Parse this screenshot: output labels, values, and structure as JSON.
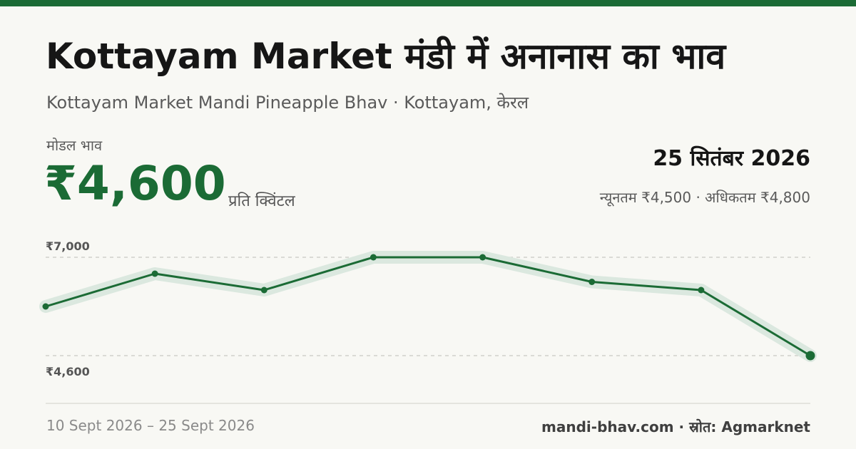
{
  "header": {
    "title": "Kottayam Market मंडी में अनानास का भाव",
    "subtitle": "Kottayam Market Mandi Pineapple Bhav · Kottayam, केरल"
  },
  "price": {
    "label": "मोडल भाव",
    "value": "₹4,600",
    "unit": "प्रति क्विंटल"
  },
  "date": {
    "current": "25 सितंबर 2026",
    "range": "न्यूनतम ₹4,500 · अधिकतम ₹4,800"
  },
  "footer": {
    "period": "10 Sept 2026 – 25 Sept 2026",
    "source": "mandi-bhav.com · स्रोत: Agmarknet"
  },
  "colors": {
    "accent": "#1b6b35",
    "band": "#dbe8df",
    "grid": "#c8c8c2"
  },
  "chart_data": {
    "type": "line",
    "x": [
      "10 Sept 2026",
      "",
      "",
      "",
      "",
      "",
      "",
      "25 Sept 2026"
    ],
    "series": [
      {
        "values": [
          5800,
          6600,
          6200,
          7000,
          7000,
          6400,
          6200,
          4600
        ]
      }
    ],
    "ylim": [
      4600,
      7000
    ],
    "yticks": [
      7000,
      4600
    ],
    "ytick_labels": [
      "₹7,000",
      "₹4,600"
    ],
    "grid": true
  }
}
